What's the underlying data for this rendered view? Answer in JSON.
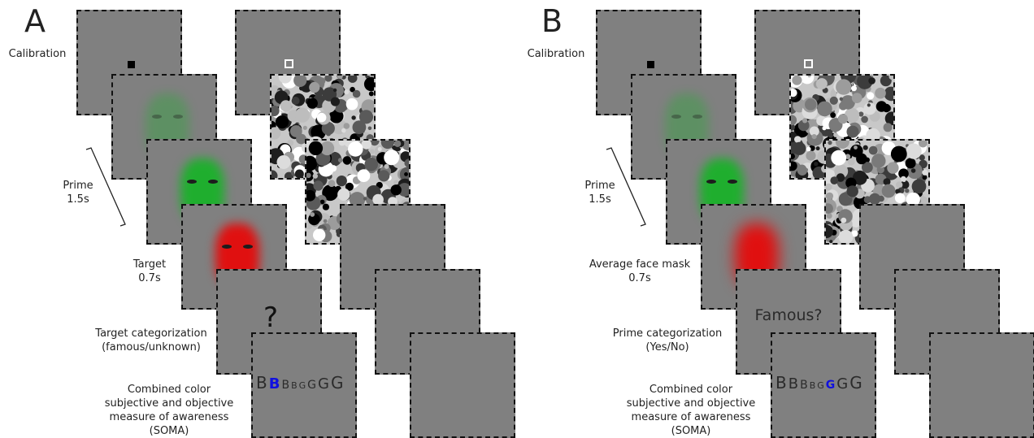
{
  "panels": [
    {
      "letter": "A",
      "labels": {
        "calibration": "Calibration",
        "prime_line1": "Prime",
        "prime_line2": "1.5s",
        "target_line1": "Target",
        "target_line2": "0.7s",
        "categorization_line1": "Target categorization",
        "categorization_line2": "(famous/unknown)",
        "soma_line1": "Combined color",
        "soma_line2": "subjective and objective",
        "soma_line3": "measure of awareness",
        "soma_line4": "(SOMA)"
      },
      "question": "?",
      "soma_letters": [
        "B",
        "B",
        "B",
        "B",
        "G",
        "G",
        "G",
        "G"
      ],
      "soma_highlight_index": 1
    },
    {
      "letter": "B",
      "labels": {
        "calibration": "Calibration",
        "prime_line1": "Prime",
        "prime_line2": "1.5s",
        "target_line1": "Average face mask",
        "target_line2": "0.7s",
        "categorization_line1": "Prime categorization",
        "categorization_line2": "(Yes/No)",
        "soma_line1": "Combined color",
        "soma_line2": "subjective and objective",
        "soma_line3": "measure of awareness",
        "soma_line4": "(SOMA)"
      },
      "question": "Famous?",
      "soma_letters": [
        "B",
        "B",
        "B",
        "B",
        "G",
        "G",
        "G",
        "G"
      ],
      "soma_highlight_index": 5
    }
  ],
  "colors": {
    "frame_gray": "#808080",
    "prime_green": "#1fae2e",
    "target_red": "#e01010",
    "highlight_blue": "#1010e0"
  }
}
